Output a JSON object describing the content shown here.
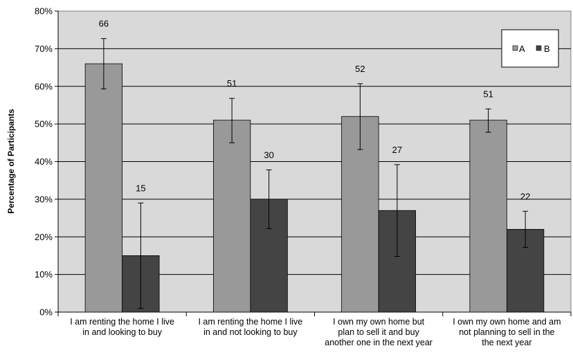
{
  "chart_data": {
    "type": "bar",
    "ylabel": "Percentage of Participants",
    "ylim": [
      0,
      80
    ],
    "yticks": [
      0,
      10,
      20,
      30,
      40,
      50,
      60,
      70,
      80
    ],
    "ytick_labels": [
      "0%",
      "10%",
      "20%",
      "30%",
      "40%",
      "50%",
      "60%",
      "70%",
      "80%"
    ],
    "categories": [
      [
        "I am renting the home I live",
        "in and looking to buy"
      ],
      [
        "I am renting the home I live",
        "in and not looking to buy"
      ],
      [
        "I own my own home but",
        "plan to sell it and buy",
        "another one in the next year"
      ],
      [
        "I own my own home and am",
        "not planning to sell in the",
        "the next year"
      ]
    ],
    "series": [
      {
        "name": "A",
        "color": "#999999",
        "values": [
          66,
          51,
          52,
          51
        ],
        "labels": [
          "66",
          "51",
          "52",
          "51"
        ],
        "err_low": [
          59.3,
          45,
          43.2,
          47.8
        ],
        "err_high": [
          72.7,
          56.8,
          60.7,
          54
        ]
      },
      {
        "name": "B",
        "color": "#444444",
        "values": [
          15,
          30,
          27,
          22
        ],
        "labels": [
          "15",
          "30",
          "27",
          "22"
        ],
        "err_low": [
          1,
          22.2,
          14.8,
          17.2
        ],
        "err_high": [
          29,
          37.8,
          39.2,
          26.8
        ]
      }
    ],
    "grid": true,
    "legend_position": "top-right"
  }
}
